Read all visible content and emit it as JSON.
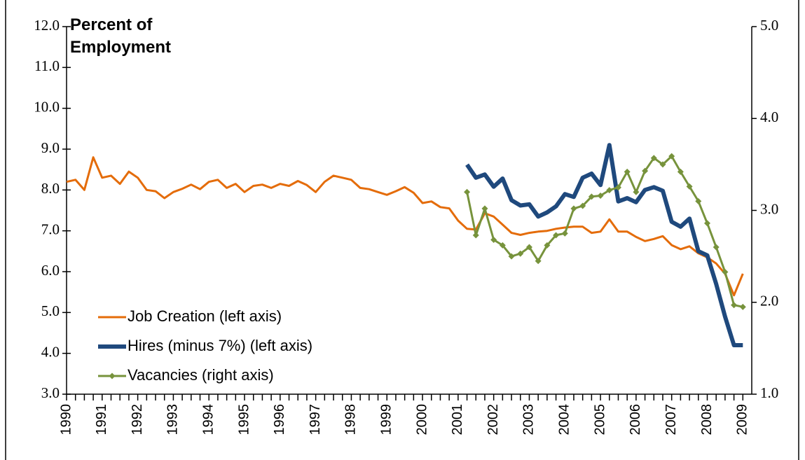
{
  "chart_data": {
    "type": "line",
    "y_label": "Percent of Employment",
    "categories": [
      "1990",
      null,
      null,
      null,
      "1991",
      null,
      null,
      null,
      "1992",
      null,
      null,
      null,
      "1993",
      null,
      null,
      null,
      "1994",
      null,
      null,
      null,
      "1995",
      null,
      null,
      null,
      "1996",
      null,
      null,
      null,
      "1997",
      null,
      null,
      null,
      "1998",
      null,
      null,
      null,
      "1999",
      null,
      null,
      null,
      "2000",
      null,
      null,
      null,
      "2001",
      null,
      null,
      null,
      "2002",
      null,
      null,
      null,
      "2003",
      null,
      null,
      null,
      "2004",
      null,
      null,
      null,
      "2005",
      null,
      null,
      null,
      "2006",
      null,
      null,
      null,
      "2007",
      null,
      null,
      null,
      "2008",
      null,
      null,
      null,
      "2009"
    ],
    "series": [
      {
        "name": "Job Creation (left axis)",
        "color": "#e46c0a",
        "values": [
          8.2,
          8.25,
          8.0,
          8.8,
          8.3,
          8.35,
          8.15,
          8.45,
          8.3,
          8.0,
          7.97,
          7.8,
          7.95,
          8.03,
          8.13,
          8.02,
          8.2,
          8.25,
          8.05,
          8.15,
          7.95,
          8.1,
          8.13,
          8.05,
          8.15,
          8.1,
          8.22,
          8.12,
          7.95,
          8.2,
          8.35,
          8.3,
          8.25,
          8.05,
          8.02,
          7.95,
          7.88,
          7.97,
          8.07,
          7.93,
          7.68,
          7.72,
          7.58,
          7.55,
          7.25,
          7.05,
          7.03,
          7.43,
          7.35,
          7.15,
          6.95,
          6.9,
          6.95,
          6.98,
          7.0,
          7.05,
          7.08,
          7.1,
          7.1,
          6.95,
          6.98,
          7.28,
          6.98,
          6.98,
          6.85,
          6.75,
          6.8,
          6.87,
          6.65,
          6.55,
          6.62,
          6.45,
          6.35,
          6.2,
          5.95,
          5.42,
          5.95
        ]
      },
      {
        "name": "Hires (minus 7%) (left axis)",
        "color": "#1f497d",
        "values": [
          null,
          null,
          null,
          null,
          null,
          null,
          null,
          null,
          null,
          null,
          null,
          null,
          null,
          null,
          null,
          null,
          null,
          null,
          null,
          null,
          null,
          null,
          null,
          null,
          null,
          null,
          null,
          null,
          null,
          null,
          null,
          null,
          null,
          null,
          null,
          null,
          null,
          null,
          null,
          null,
          null,
          null,
          null,
          null,
          null,
          8.62,
          8.3,
          8.38,
          8.08,
          8.28,
          7.75,
          7.62,
          7.65,
          7.35,
          7.45,
          7.6,
          7.9,
          7.83,
          8.3,
          8.4,
          8.12,
          9.1,
          7.72,
          7.8,
          7.7,
          8.0,
          8.07,
          7.98,
          7.22,
          7.1,
          7.3,
          6.5,
          6.4,
          5.7,
          4.9,
          4.2,
          4.2
        ]
      },
      {
        "name": "Vacancies (right axis)",
        "color": "#77933c",
        "axis": "y2",
        "marker": "diamond",
        "values": [
          null,
          null,
          null,
          null,
          null,
          null,
          null,
          null,
          null,
          null,
          null,
          null,
          null,
          null,
          null,
          null,
          null,
          null,
          null,
          null,
          null,
          null,
          null,
          null,
          null,
          null,
          null,
          null,
          null,
          null,
          null,
          null,
          null,
          null,
          null,
          null,
          null,
          null,
          null,
          null,
          null,
          null,
          null,
          null,
          null,
          3.2,
          2.73,
          3.02,
          2.68,
          2.62,
          2.5,
          2.53,
          2.6,
          2.45,
          2.62,
          2.73,
          2.75,
          3.02,
          3.05,
          3.15,
          3.16,
          3.22,
          3.25,
          3.42,
          3.2,
          3.43,
          3.57,
          3.5,
          3.59,
          3.42,
          3.26,
          3.1,
          2.86,
          2.6,
          2.33,
          1.97,
          1.95
        ]
      }
    ],
    "ylim": [
      3,
      12
    ],
    "yticks": [
      {
        "value": 3,
        "label": "3.0"
      },
      {
        "value": 4,
        "label": "4.0"
      },
      {
        "value": 5,
        "label": "5.0"
      },
      {
        "value": 6,
        "label": "6.0"
      },
      {
        "value": 7,
        "label": "7.0"
      },
      {
        "value": 8,
        "label": "8.0"
      },
      {
        "value": 9,
        "label": "9.0"
      },
      {
        "value": 10,
        "label": "10.0"
      },
      {
        "value": 11,
        "label": "11.0"
      },
      {
        "value": 12,
        "label": "12.0"
      }
    ],
    "y2lim": [
      1,
      5
    ],
    "y2ticks": [
      {
        "value": 1,
        "label": "1.0"
      },
      {
        "value": 2,
        "label": "2.0"
      },
      {
        "value": 3,
        "label": "3.0"
      },
      {
        "value": 4,
        "label": "4.0"
      },
      {
        "value": 5,
        "label": "5.0"
      }
    ],
    "grid": false,
    "legend": "lower left"
  }
}
